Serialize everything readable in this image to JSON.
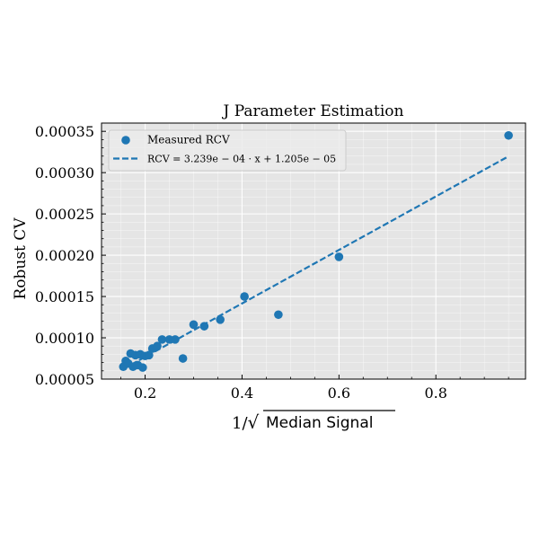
{
  "chart_data": {
    "type": "scatter",
    "title": "J Parameter Estimation",
    "xlabel": {
      "prefix": "1/",
      "radical": "√",
      "radicand": "Median Signal"
    },
    "ylabel": "Robust CV",
    "xlim": [
      0.11,
      0.985
    ],
    "ylim": [
      5e-05,
      0.00036
    ],
    "xticks": [
      0.2,
      0.4,
      0.6,
      0.8
    ],
    "xtick_labels": [
      "0.2",
      "0.4",
      "0.6",
      "0.8"
    ],
    "yticks": [
      5e-05,
      0.0001,
      0.00015,
      0.0002,
      0.00025,
      0.0003,
      0.00035
    ],
    "ytick_labels": [
      "0.00005",
      "0.00010",
      "0.00015",
      "0.00020",
      "0.00025",
      "0.00030",
      "0.00035"
    ],
    "grid": true,
    "legend_position": "top-left",
    "colors": {
      "points": "#1f77b4",
      "fit_line": "#1f77b4",
      "plot_background": "#e5e5e5",
      "grid": "#ffffff"
    },
    "series": [
      {
        "name": "Measured RCV",
        "kind": "scatter",
        "points": [
          {
            "x": 0.155,
            "y": 6.5e-05
          },
          {
            "x": 0.16,
            "y": 7.2e-05
          },
          {
            "x": 0.165,
            "y": 6.9e-05
          },
          {
            "x": 0.17,
            "y": 8.1e-05
          },
          {
            "x": 0.175,
            "y": 6.5e-05
          },
          {
            "x": 0.18,
            "y": 7.9e-05
          },
          {
            "x": 0.185,
            "y": 6.7e-05
          },
          {
            "x": 0.19,
            "y": 8e-05
          },
          {
            "x": 0.195,
            "y": 6.4e-05
          },
          {
            "x": 0.2,
            "y": 7.8e-05
          },
          {
            "x": 0.208,
            "y": 7.9e-05
          },
          {
            "x": 0.215,
            "y": 8.7e-05
          },
          {
            "x": 0.225,
            "y": 9e-05
          },
          {
            "x": 0.235,
            "y": 9.8e-05
          },
          {
            "x": 0.25,
            "y": 9.8e-05
          },
          {
            "x": 0.262,
            "y": 9.8e-05
          },
          {
            "x": 0.278,
            "y": 7.5e-05
          },
          {
            "x": 0.3,
            "y": 0.000116
          },
          {
            "x": 0.322,
            "y": 0.000114
          },
          {
            "x": 0.355,
            "y": 0.000122
          },
          {
            "x": 0.405,
            "y": 0.00015
          },
          {
            "x": 0.475,
            "y": 0.000128
          },
          {
            "x": 0.6,
            "y": 0.000198
          },
          {
            "x": 0.95,
            "y": 0.000345
          }
        ]
      },
      {
        "name": "RCV = 3.239e − 04 · x + 1.205e − 05",
        "kind": "line",
        "style": "dashed",
        "slope": 0.0003239,
        "intercept": 1.205e-05,
        "x_range": [
          0.155,
          0.95
        ]
      }
    ]
  }
}
